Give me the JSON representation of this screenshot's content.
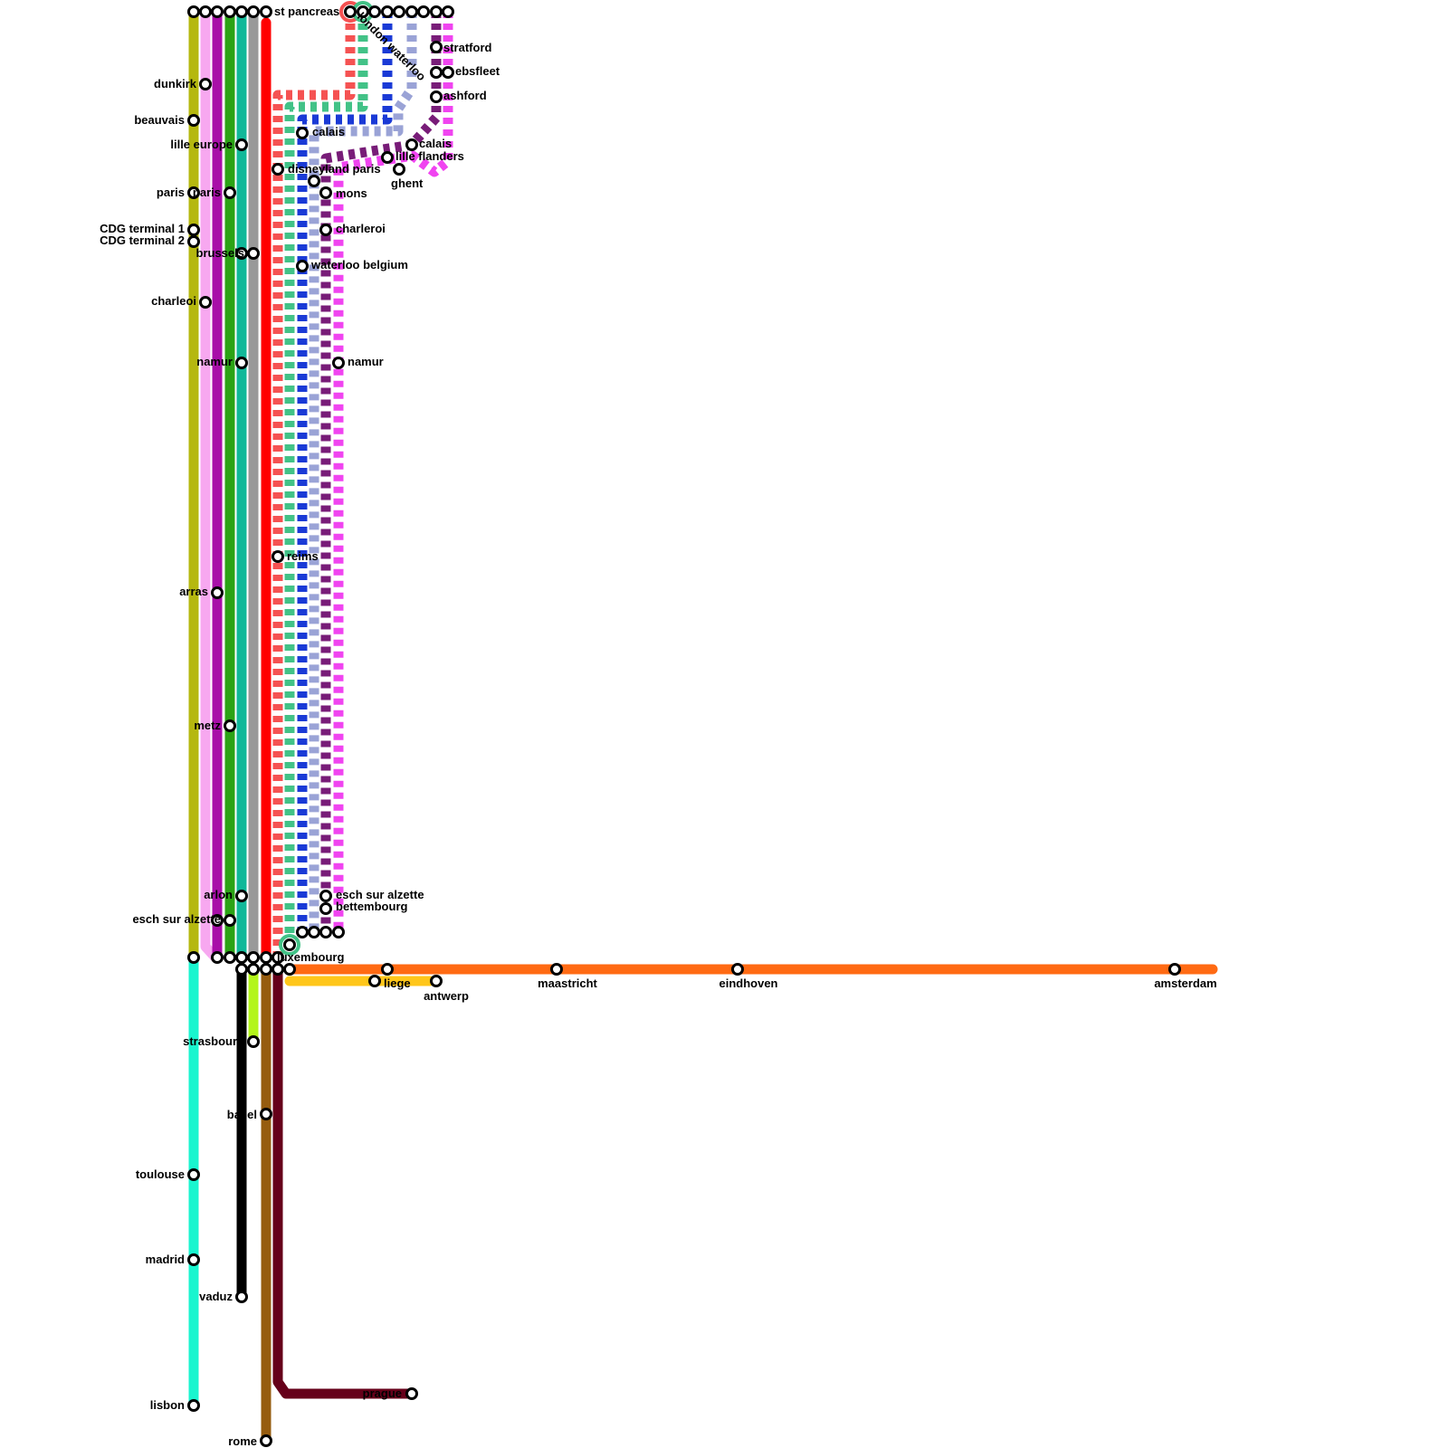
{
  "lines": [
    {
      "id": "olive",
      "color": "#b5b80f",
      "dashed": false
    },
    {
      "id": "pink",
      "color": "#f7a8f0",
      "dashed": false
    },
    {
      "id": "purple",
      "color": "#a80fa8",
      "dashed": false
    },
    {
      "id": "green",
      "color": "#2ba315",
      "dashed": false
    },
    {
      "id": "teal",
      "color": "#10b899",
      "dashed": false
    },
    {
      "id": "grey",
      "color": "#999999",
      "dashed": false
    },
    {
      "id": "red",
      "color": "#ff0000",
      "dashed": false
    },
    {
      "id": "red-dash",
      "color": "#f55252",
      "dashed": true
    },
    {
      "id": "mint-dash",
      "color": "#42c287",
      "dashed": true
    },
    {
      "id": "blue-dash",
      "color": "#1a3ad6",
      "dashed": true
    },
    {
      "id": "lav-dash",
      "color": "#9aa3d6",
      "dashed": true
    },
    {
      "id": "plum-dash",
      "color": "#781c78",
      "dashed": true
    },
    {
      "id": "magenta-dash",
      "color": "#f044f0",
      "dashed": true
    },
    {
      "id": "orange",
      "color": "#ff6a13",
      "dashed": false
    },
    {
      "id": "yellow",
      "color": "#ffc61a",
      "dashed": false
    },
    {
      "id": "cyan",
      "color": "#19f5cf",
      "dashed": false
    },
    {
      "id": "black",
      "color": "#000000",
      "dashed": false
    },
    {
      "id": "lime",
      "color": "#b3f51a",
      "dashed": false
    },
    {
      "id": "brown",
      "color": "#965c0f",
      "dashed": false
    },
    {
      "id": "maroon",
      "color": "#66001a",
      "dashed": false
    }
  ],
  "stations": {
    "st_pancras": "st pancreas",
    "london_waterloo": "london waterloo",
    "stratford": "stratford",
    "ebsfleet": "ebsfleet",
    "ashford": "ashford",
    "calais_top": "calais",
    "lille_flanders": "lille flanders",
    "ghent": "ghent",
    "calais": "calais",
    "disneyland_paris": "disneyland paris",
    "mons": "mons",
    "charleroi_right": "charleroi",
    "waterloo_belgium": "waterloo belgium",
    "namur_right": "namur",
    "reims": "reims",
    "esch_right": "esch sur alzette",
    "bettembourg": "bettembourg",
    "luxembourg": "luxembourg",
    "dunkirk": "dunkirk",
    "beauvais": "beauvais",
    "lille_europe": "lille europe",
    "paris_olive": "paris",
    "paris_green": "paris",
    "cdg1": "CDG terminal 1",
    "cdg2": "CDG terminal 2",
    "brussels": "brussels",
    "charleoi": "charleoi",
    "namur_left": "namur",
    "arras": "arras",
    "metz": "metz",
    "arlon": "arlon",
    "esch_left": "esch sur alzette",
    "liege": "liege",
    "antwerp": "antwerp",
    "maastricht": "maastricht",
    "eindhoven": "eindhoven",
    "amsterdam": "amsterdam",
    "strasbourg": "strasbourg",
    "basel": "basel",
    "toulouse": "toulouse",
    "madrid": "madrid",
    "vaduz": "vaduz",
    "lisbon": "lisbon",
    "prague": "prague",
    "rome": "rome"
  }
}
